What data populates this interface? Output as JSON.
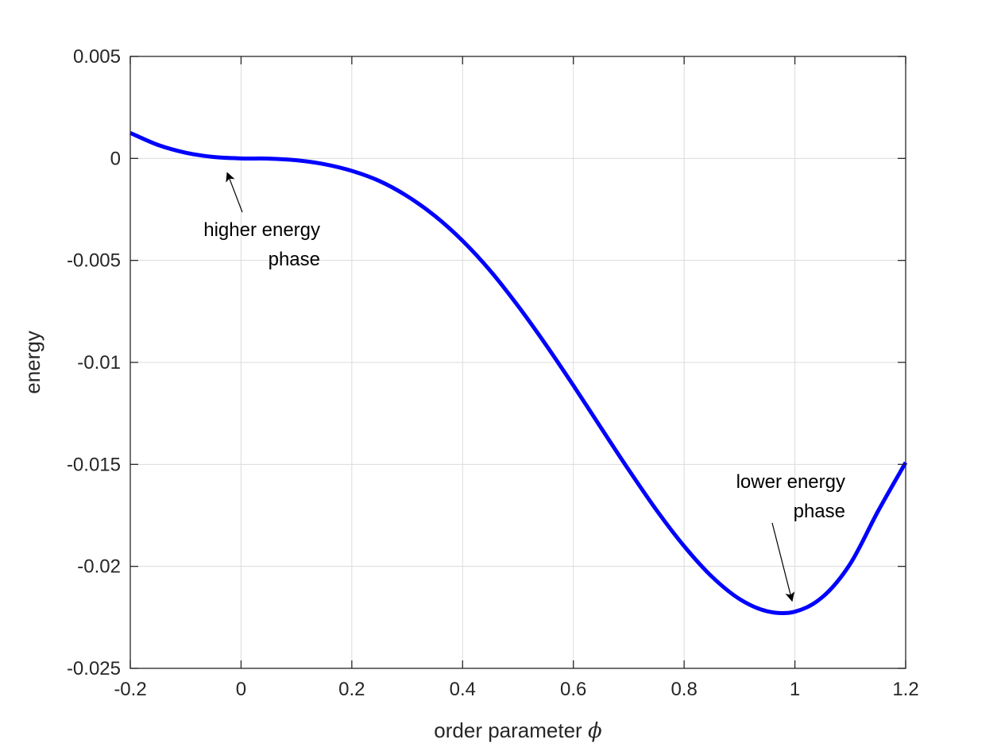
{
  "chart_data": {
    "type": "line",
    "xlabel": "order parameter",
    "xlabel_symbol": "ϕ",
    "ylabel": "energy",
    "xlim": [
      -0.2,
      1.2
    ],
    "ylim": [
      -0.025,
      0.005
    ],
    "xticks": [
      -0.2,
      0,
      0.2,
      0.4,
      0.6,
      0.8,
      1,
      1.2
    ],
    "xtick_labels": [
      "-0.2",
      "0",
      "0.2",
      "0.4",
      "0.6",
      "0.8",
      "1",
      "1.2"
    ],
    "yticks": [
      0.005,
      0,
      -0.005,
      -0.01,
      -0.015,
      -0.02,
      -0.025
    ],
    "ytick_labels": [
      "0.005",
      "0",
      "-0.005",
      "-0.01",
      "-0.015",
      "-0.02",
      "-0.025"
    ],
    "grid": true,
    "line_color": "#0000ff",
    "series": [
      {
        "x": [
          -0.2,
          -0.15,
          -0.1,
          -0.05,
          0,
          0.05,
          0.1,
          0.15,
          0.2,
          0.25,
          0.3,
          0.35,
          0.4,
          0.45,
          0.5,
          0.55,
          0.6,
          0.65,
          0.7,
          0.75,
          0.8,
          0.85,
          0.9,
          0.95,
          1.0,
          1.05,
          1.1,
          1.15,
          1.2
        ],
        "y": [
          0.00125,
          0.00066,
          0.00028,
          7e-05,
          0.0,
          -1e-05,
          -9e-05,
          -0.00028,
          -0.00061,
          -0.00111,
          -0.00185,
          -0.00282,
          -0.00404,
          -0.00551,
          -0.00723,
          -0.00912,
          -0.01113,
          -0.01321,
          -0.01527,
          -0.01724,
          -0.01901,
          -0.0205,
          -0.0216,
          -0.0222,
          -0.02222,
          -0.0215,
          -0.01987,
          -0.0173,
          -0.01491
        ]
      }
    ],
    "annotations": [
      {
        "lines": [
          "higher energy",
          "phase"
        ],
        "point": [
          -0.025,
          -0.0007
        ]
      },
      {
        "lines": [
          "lower energy",
          "phase"
        ],
        "point": [
          0.995,
          -0.0217
        ]
      }
    ]
  }
}
